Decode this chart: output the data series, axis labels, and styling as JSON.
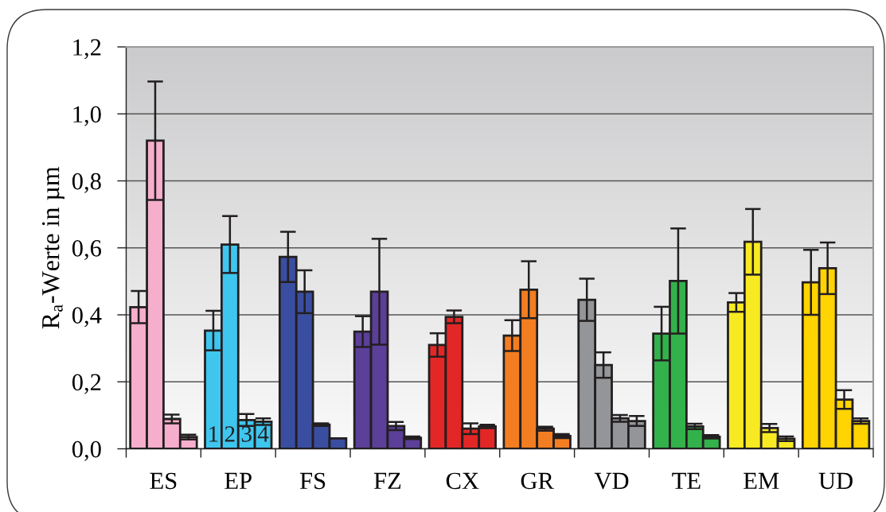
{
  "chart_data": {
    "type": "bar",
    "ylabel": "R$_{a}$-Werte in µm",
    "categories": [
      "ES",
      "EP",
      "FS",
      "FZ",
      "CX",
      "GR",
      "VD",
      "TE",
      "EM",
      "UD"
    ],
    "series": [
      {
        "colors": [
          "#f5aecb",
          "#3ec6ee",
          "#3a4ea1",
          "#5c3f99",
          "#e32726",
          "#f37e21",
          "#939598",
          "#33b14a",
          "#f8ea22",
          "#ffd400"
        ],
        "values": [
          0.423,
          0.353,
          0.573,
          0.35,
          0.31,
          0.338,
          0.445,
          0.344,
          0.437,
          0.497
        ],
        "errors": [
          0.048,
          0.059,
          0.075,
          0.046,
          0.035,
          0.046,
          0.063,
          0.08,
          0.028,
          0.097
        ]
      },
      {
        "colors": [
          "#f5aecb",
          "#3ec6ee",
          "#3a4ea1",
          "#5c3f99",
          "#e32726",
          "#f37e21",
          "#939598",
          "#33b14a",
          "#f8ea22",
          "#ffd400"
        ],
        "values": [
          0.92,
          0.61,
          0.469,
          0.469,
          0.394,
          0.475,
          0.25,
          0.501,
          0.618,
          0.539
        ],
        "errors": [
          0.177,
          0.085,
          0.064,
          0.158,
          0.019,
          0.085,
          0.038,
          0.157,
          0.098,
          0.077
        ]
      },
      {
        "colors": [
          "#f5aecb",
          "#3ec6ee",
          "#3a4ea1",
          "#5c3f99",
          "#e32726",
          "#f37e21",
          "#939598",
          "#33b14a",
          "#f8ea22",
          "#ffd400"
        ],
        "values": [
          0.089,
          0.086,
          0.072,
          0.068,
          0.06,
          0.06,
          0.091,
          0.067,
          0.062,
          0.147
        ],
        "errors": [
          0.013,
          0.018,
          0.004,
          0.012,
          0.016,
          0.006,
          0.01,
          0.008,
          0.012,
          0.028
        ]
      },
      {
        "colors": [
          "#f5aecb",
          "#3ec6ee",
          "#3a4ea1",
          "#5c3f99",
          "#e32726",
          "#f37e21",
          "#939598",
          "#33b14a",
          "#f8ea22",
          "#ffd400"
        ],
        "values": [
          0.035,
          0.081,
          0.031,
          0.033,
          0.067,
          0.038,
          0.083,
          0.036,
          0.03,
          0.083
        ],
        "errors": [
          0.007,
          0.01,
          null,
          0.004,
          0.005,
          0.006,
          0.015,
          0.005,
          0.007,
          0.008
        ]
      }
    ],
    "ylim": [
      0,
      1.2
    ],
    "yticks": [
      {
        "value": 0,
        "label": "0,0"
      },
      {
        "value": 0.2,
        "label": "0,2"
      },
      {
        "value": 0.4,
        "label": "0,4"
      },
      {
        "value": 0.6,
        "label": "0,6"
      },
      {
        "value": 0.8,
        "label": "0,8"
      },
      {
        "value": 1.0,
        "label": "1,0"
      },
      {
        "value": 1.2,
        "label": "1,2"
      }
    ],
    "grid": "y",
    "annotations": [
      {
        "text": "1",
        "x": "EP",
        "y": 0.038
      },
      {
        "text": "2",
        "x": "EP",
        "y": 0.038
      },
      {
        "text": "3",
        "x": "EP",
        "y": 0.038
      },
      {
        "text": "4",
        "x": "EP",
        "y": 0.038
      }
    ]
  }
}
